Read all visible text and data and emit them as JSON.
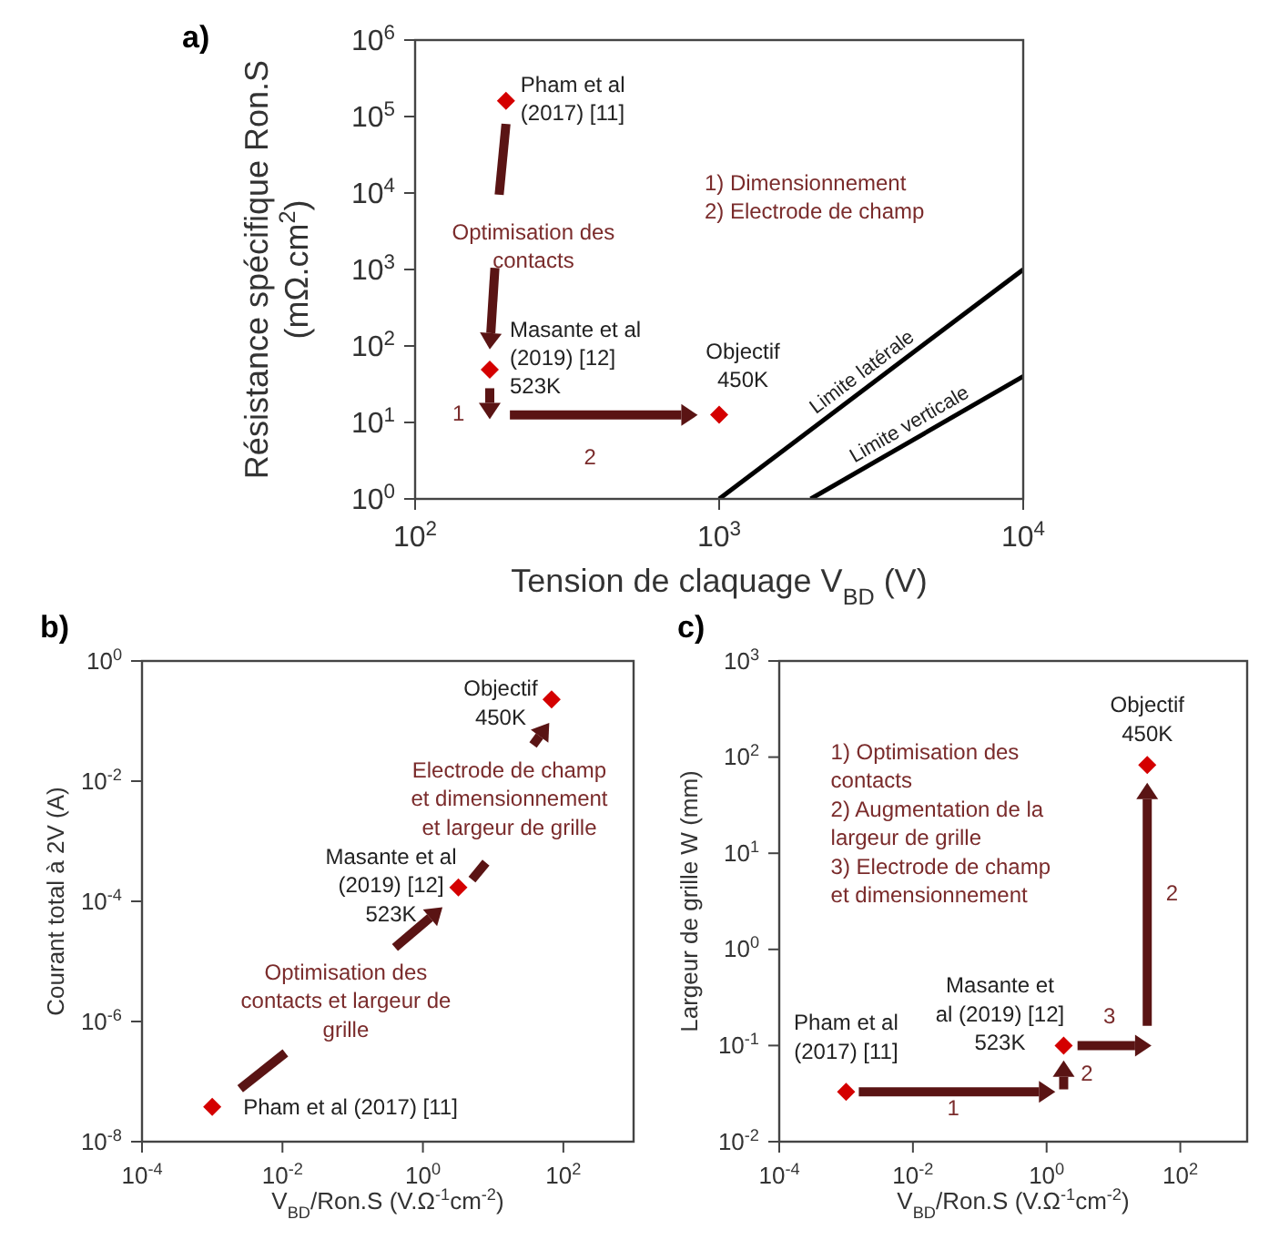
{
  "chart_data": [
    {
      "type": "scatter",
      "title": "a)",
      "xlabel": "Tension de claquage V$_{BD}$ (V)",
      "ylabel": "Résistance spécifique Ron.S\n(mΩ.cm$^{2}$)",
      "log": "xy",
      "marker": "diamond",
      "xlim": [
        100,
        10000
      ],
      "xticks": [
        {
          "value": 100,
          "label": "10$^{2}$"
        },
        {
          "value": 1000,
          "label": "10$^{3}$"
        },
        {
          "value": 10000,
          "label": "10$^{4}$"
        }
      ],
      "ylim": [
        1,
        1000000
      ],
      "yticks": [
        {
          "value": 1,
          "label": "10$^{0}$"
        },
        {
          "value": 10,
          "label": "10$^{1}$"
        },
        {
          "value": 100,
          "label": "10$^{2}$"
        },
        {
          "value": 1000,
          "label": "10$^{3}$"
        },
        {
          "value": 10000,
          "label": "10$^{4}$"
        },
        {
          "value": 100000,
          "label": "10$^{5}$"
        },
        {
          "value": 1000000,
          "label": "10$^{6}$"
        }
      ],
      "series": [
        {
          "color": "#d40000",
          "x": [
            199,
            176,
            1000
          ],
          "values": [
            160000,
            49,
            12.6
          ]
        },
        {
          "type": "line",
          "name": "Limite latérale",
          "color": "#000000",
          "marker": "none",
          "x": [
            1000,
            10000
          ],
          "values": [
            1,
            1000
          ]
        },
        {
          "type": "line",
          "name": "Limite verticale",
          "color": "#000000",
          "marker": "none",
          "x": [
            2000,
            10000
          ],
          "values": [
            1,
            40
          ]
        }
      ],
      "annotations": [
        {
          "text": "Pham et al\n(2017) [11]",
          "x": 199,
          "y": 160000
        },
        {
          "text": "Masante et al\n(2019) [12]\n523K",
          "x": 176,
          "y": 49
        },
        {
          "text": "Objectif\n450K",
          "x": 1000,
          "y": 12.6
        },
        "Optimisation des\ncontacts",
        "1",
        "2",
        "1) Dimensionnement\n2) Electrode de champ"
      ]
    },
    {
      "type": "scatter",
      "title": "b)",
      "xlabel": "V$_{BD}$/Ron.S (V.Ω$^{-1}$cm$^{-2}$)",
      "ylabel": "Courant total à 2V (A)",
      "log": "xy",
      "marker": "diamond",
      "xlim": [
        0.0001,
        1000
      ],
      "xticks": [
        {
          "value": 0.0001,
          "label": "10$^{-4}$"
        },
        {
          "value": 0.01,
          "label": "10$^{-2}$"
        },
        {
          "value": 1,
          "label": "10$^{0}$"
        },
        {
          "value": 100,
          "label": "10$^{2}$"
        }
      ],
      "ylim": [
        1e-08,
        1
      ],
      "yticks": [
        {
          "value": 1e-08,
          "label": "10$^{-8}$"
        },
        {
          "value": 1e-06,
          "label": "10$^{-6}$"
        },
        {
          "value": 0.0001,
          "label": "10$^{-4}$"
        },
        {
          "value": 0.01,
          "label": "10$^{-2}$"
        },
        {
          "value": 1,
          "label": "10$^{0}$"
        }
      ],
      "series": [
        {
          "color": "#d40000",
          "x": [
            0.001,
            3.2,
            68
          ],
          "values": [
            3.8e-08,
            0.00017,
            0.23
          ]
        }
      ],
      "annotations": [
        {
          "text": "Pham et al (2017) [11]",
          "x": 0.001,
          "y": 3.8e-08
        },
        {
          "text": "Masante et al\n(2019) [12]\n523K",
          "x": 3.2,
          "y": 0.00017
        },
        {
          "text": "Objectif\n450K",
          "x": 68,
          "y": 0.23
        },
        "Optimisation des\ncontacts et largeur de\ngrille",
        "Electrode de champ\net dimensionnement\net largeur de grille"
      ]
    },
    {
      "type": "scatter",
      "title": "c)",
      "xlabel": "V$_{BD}$/Ron.S (V.Ω$^{-1}$cm$^{-2}$)",
      "ylabel": "Largeur de grille W (mm)",
      "log": "xy",
      "marker": "diamond",
      "xlim": [
        0.0001,
        1000
      ],
      "xticks": [
        {
          "value": 0.0001,
          "label": "10$^{-4}$"
        },
        {
          "value": 0.01,
          "label": "10$^{-2}$"
        },
        {
          "value": 1,
          "label": "10$^{0}$"
        },
        {
          "value": 100,
          "label": "10$^{2}$"
        }
      ],
      "ylim": [
        0.01,
        1000
      ],
      "yticks": [
        {
          "value": 0.01,
          "label": "10$^{-2}$"
        },
        {
          "value": 0.1,
          "label": "10$^{-1}$"
        },
        {
          "value": 1,
          "label": "10$^{0}$"
        },
        {
          "value": 10,
          "label": "10$^{1}$"
        },
        {
          "value": 100,
          "label": "10$^{2}$"
        },
        {
          "value": 1000,
          "label": "10$^{3}$"
        }
      ],
      "series": [
        {
          "color": "#d40000",
          "x": [
            0.001,
            1.8,
            32
          ],
          "values": [
            0.033,
            0.1,
            83
          ]
        }
      ],
      "annotations": [
        {
          "text": "Pham et al\n(2017) [11]",
          "x": 0.001,
          "y": 0.033
        },
        {
          "text": "Masante et\nal (2019) [12]\n523K",
          "x": 1.8,
          "y": 0.1
        },
        {
          "text": "Objectif\n450K",
          "x": 32,
          "y": 83
        },
        "1",
        "2",
        "3",
        "2",
        "1) Optimisation des\ncontacts\n2) Augmentation de la\nlargeur de grille\n3) Electrode de champ\net dimensionnement"
      ]
    }
  ]
}
